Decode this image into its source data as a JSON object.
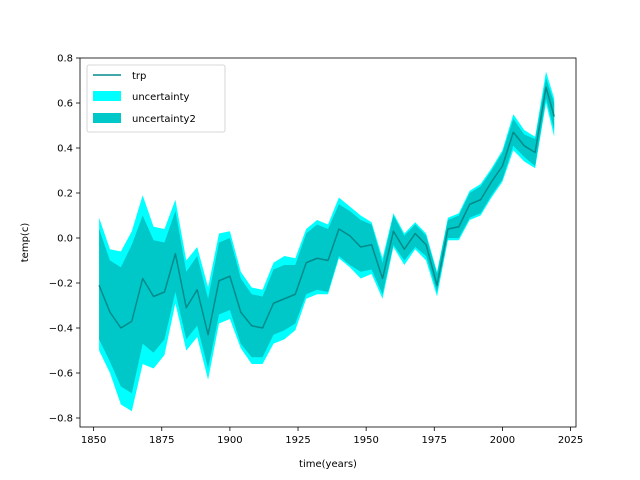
{
  "chart_data": {
    "type": "line",
    "xlabel": "time(years)",
    "ylabel": "temp(c)",
    "xlim": [
      1845,
      2027
    ],
    "ylim": [
      -0.84,
      0.8
    ],
    "xticks": [
      1850,
      1875,
      1900,
      1925,
      1950,
      1975,
      2000,
      2025
    ],
    "yticks": [
      -0.8,
      -0.6,
      -0.4,
      -0.2,
      0.0,
      0.2,
      0.4,
      0.6,
      0.8
    ],
    "ytick_labels": [
      "−0.8",
      "−0.6",
      "−0.4",
      "−0.2",
      "0.0",
      "0.2",
      "0.4",
      "0.6",
      "0.8"
    ],
    "legend_position": "top-left",
    "colors": {
      "line": "#008b8b",
      "uncertainty": "#00ffff",
      "uncertainty2": "#00c8c8"
    },
    "x": [
      1852,
      1856,
      1860,
      1864,
      1868,
      1872,
      1876,
      1880,
      1884,
      1888,
      1892,
      1896,
      1900,
      1904,
      1908,
      1912,
      1916,
      1920,
      1924,
      1928,
      1932,
      1936,
      1940,
      1944,
      1948,
      1952,
      1956,
      1960,
      1964,
      1968,
      1972,
      1976,
      1980,
      1984,
      1988,
      1992,
      1996,
      2000,
      2004,
      2008,
      2012,
      2016,
      2019
    ],
    "series": [
      {
        "name": "trp",
        "kind": "line",
        "values": [
          -0.21,
          -0.33,
          -0.4,
          -0.37,
          -0.18,
          -0.26,
          -0.24,
          -0.07,
          -0.31,
          -0.23,
          -0.43,
          -0.19,
          -0.17,
          -0.33,
          -0.39,
          -0.4,
          -0.29,
          -0.27,
          -0.25,
          -0.11,
          -0.09,
          -0.1,
          0.04,
          0.01,
          -0.04,
          -0.03,
          -0.18,
          0.03,
          -0.05,
          0.02,
          -0.03,
          -0.21,
          0.04,
          0.05,
          0.15,
          0.17,
          0.25,
          0.32,
          0.47,
          0.41,
          0.38,
          0.67,
          0.54
        ]
      },
      {
        "name": "uncertainty",
        "kind": "band",
        "lower": [
          -0.5,
          -0.6,
          -0.74,
          -0.77,
          -0.56,
          -0.58,
          -0.52,
          -0.29,
          -0.5,
          -0.44,
          -0.63,
          -0.38,
          -0.36,
          -0.49,
          -0.56,
          -0.56,
          -0.47,
          -0.45,
          -0.41,
          -0.27,
          -0.25,
          -0.25,
          -0.09,
          -0.13,
          -0.18,
          -0.16,
          -0.27,
          -0.04,
          -0.12,
          -0.05,
          -0.1,
          -0.26,
          -0.01,
          -0.01,
          0.08,
          0.1,
          0.18,
          0.25,
          0.39,
          0.34,
          0.31,
          0.6,
          0.45
        ],
        "upper": [
          0.09,
          -0.05,
          -0.06,
          0.03,
          0.19,
          0.05,
          0.04,
          0.17,
          -0.1,
          -0.04,
          -0.22,
          0.02,
          0.03,
          -0.15,
          -0.22,
          -0.23,
          -0.11,
          -0.08,
          -0.09,
          0.04,
          0.08,
          0.06,
          0.18,
          0.14,
          0.1,
          0.07,
          -0.09,
          0.11,
          0.02,
          0.07,
          0.02,
          -0.15,
          0.09,
          0.11,
          0.21,
          0.24,
          0.31,
          0.39,
          0.55,
          0.48,
          0.45,
          0.74,
          0.62
        ]
      },
      {
        "name": "uncertainty2",
        "kind": "band",
        "lower": [
          -0.45,
          -0.55,
          -0.66,
          -0.69,
          -0.47,
          -0.51,
          -0.45,
          -0.24,
          -0.45,
          -0.39,
          -0.58,
          -0.34,
          -0.32,
          -0.47,
          -0.53,
          -0.53,
          -0.43,
          -0.41,
          -0.38,
          -0.25,
          -0.23,
          -0.24,
          -0.08,
          -0.12,
          -0.15,
          -0.14,
          -0.25,
          -0.03,
          -0.1,
          -0.04,
          -0.08,
          -0.24,
          0.0,
          0.0,
          0.09,
          0.11,
          0.19,
          0.26,
          0.41,
          0.36,
          0.32,
          0.62,
          0.48
        ],
        "upper": [
          0.04,
          -0.1,
          -0.13,
          -0.03,
          0.1,
          -0.01,
          -0.02,
          0.12,
          -0.15,
          -0.08,
          -0.27,
          -0.02,
          0.0,
          -0.18,
          -0.25,
          -0.26,
          -0.14,
          -0.12,
          -0.12,
          0.02,
          0.06,
          0.04,
          0.15,
          0.12,
          0.08,
          0.06,
          -0.11,
          0.1,
          0.01,
          0.06,
          0.01,
          -0.16,
          0.08,
          0.1,
          0.2,
          0.23,
          0.3,
          0.38,
          0.53,
          0.46,
          0.44,
          0.71,
          0.6
        ]
      }
    ]
  }
}
